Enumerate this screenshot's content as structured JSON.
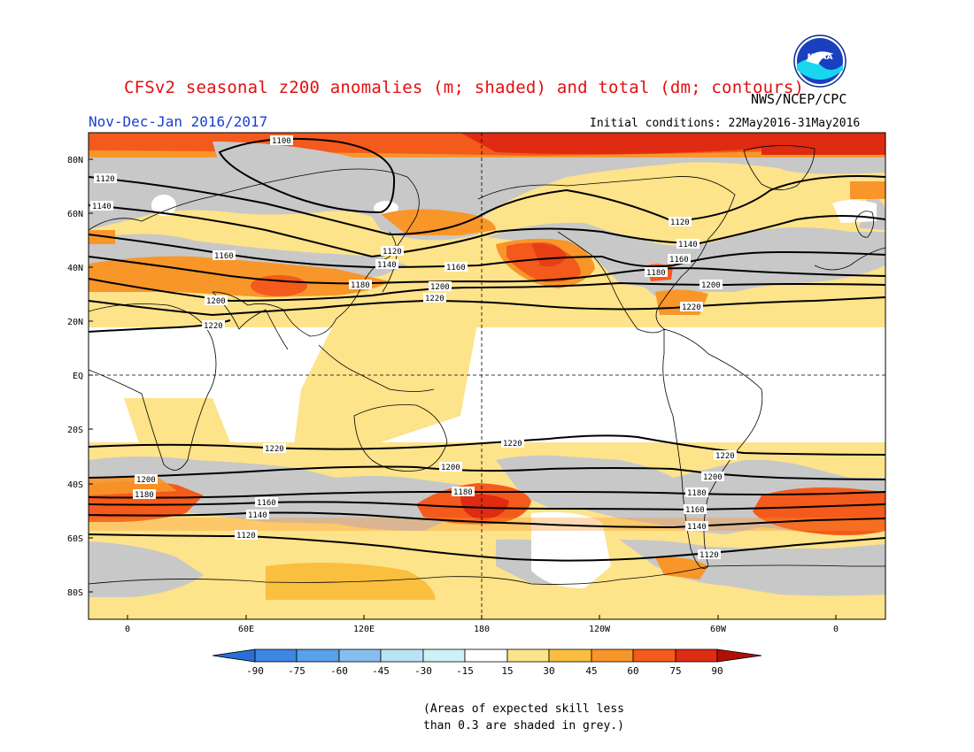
{
  "header": {
    "title": "CFSv2 seasonal z200 anomalies (m; shaded) and total (dm; contours)",
    "organization": "NWS/NCEP/CPC",
    "logo_text": "NOAA",
    "period": "Nov-Dec-Jan 2016/2017",
    "initial_conditions": "Initial conditions: 22May2016-31May2016"
  },
  "map": {
    "lat_labels": [
      "80N",
      "60N",
      "40N",
      "20N",
      "EQ",
      "20S",
      "40S",
      "60S",
      "80S"
    ],
    "lon_labels": [
      "0",
      "60E",
      "120E",
      "180",
      "120W",
      "60W",
      "0"
    ],
    "contour_labels": [
      "1100",
      "1120",
      "1140",
      "1160",
      "1180",
      "1200",
      "1220"
    ],
    "contours_dm": [
      1100,
      1120,
      1140,
      1160,
      1180,
      1200,
      1220
    ]
  },
  "colorbar": {
    "ticks": [
      "-90",
      "-75",
      "-60",
      "-45",
      "-30",
      "-15",
      "15",
      "30",
      "45",
      "60",
      "75",
      "90"
    ],
    "colors": [
      "#2a6fd8",
      "#3d86e4",
      "#5aa0ea",
      "#86bfef",
      "#b9e3f4",
      "#ffffff",
      "#fde38a",
      "#fbbf3f",
      "#f8962a",
      "#f45a1c",
      "#de2b12",
      "#b01008"
    ]
  },
  "note": {
    "line1": "(Areas of expected skill less",
    "line2": "than 0.3 are shaded in grey.)"
  }
}
